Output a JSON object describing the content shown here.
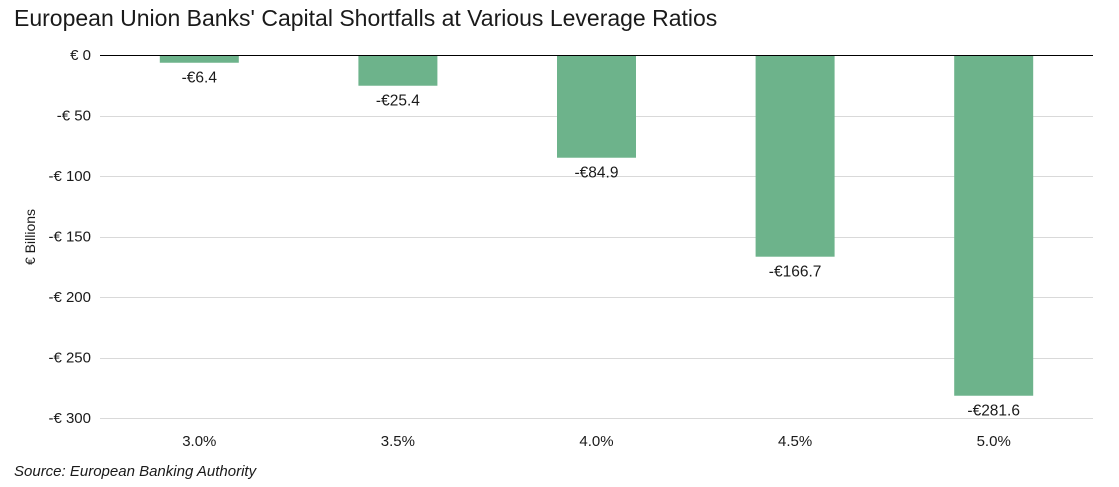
{
  "title": "European Union Banks' Capital Shortfalls at Various Leverage Ratios",
  "source": "Source: European Banking Authority",
  "colors": {
    "bar": "#6db38b",
    "gridline": "#d9d9d9",
    "zero_line": "#000000"
  },
  "chart_data": {
    "type": "bar",
    "categories": [
      "3.0%",
      "3.5%",
      "4.0%",
      "4.5%",
      "5.0%"
    ],
    "values": [
      -6.4,
      -25.4,
      -84.9,
      -166.7,
      -281.6
    ],
    "data_labels": [
      "-€6.4",
      "-€25.4",
      "-€84.9",
      "-€166.7",
      "-€281.6"
    ],
    "ylabel": "€ Billions",
    "xlabel": "",
    "ylim": [
      -300,
      0
    ],
    "yticks": [
      0,
      -50,
      -100,
      -150,
      -200,
      -250,
      -300
    ],
    "ytick_labels": [
      "€ 0",
      "-€ 50",
      "-€ 100",
      "-€ 150",
      "-€ 200",
      "-€ 250",
      "-€ 300"
    ],
    "grid": true
  }
}
